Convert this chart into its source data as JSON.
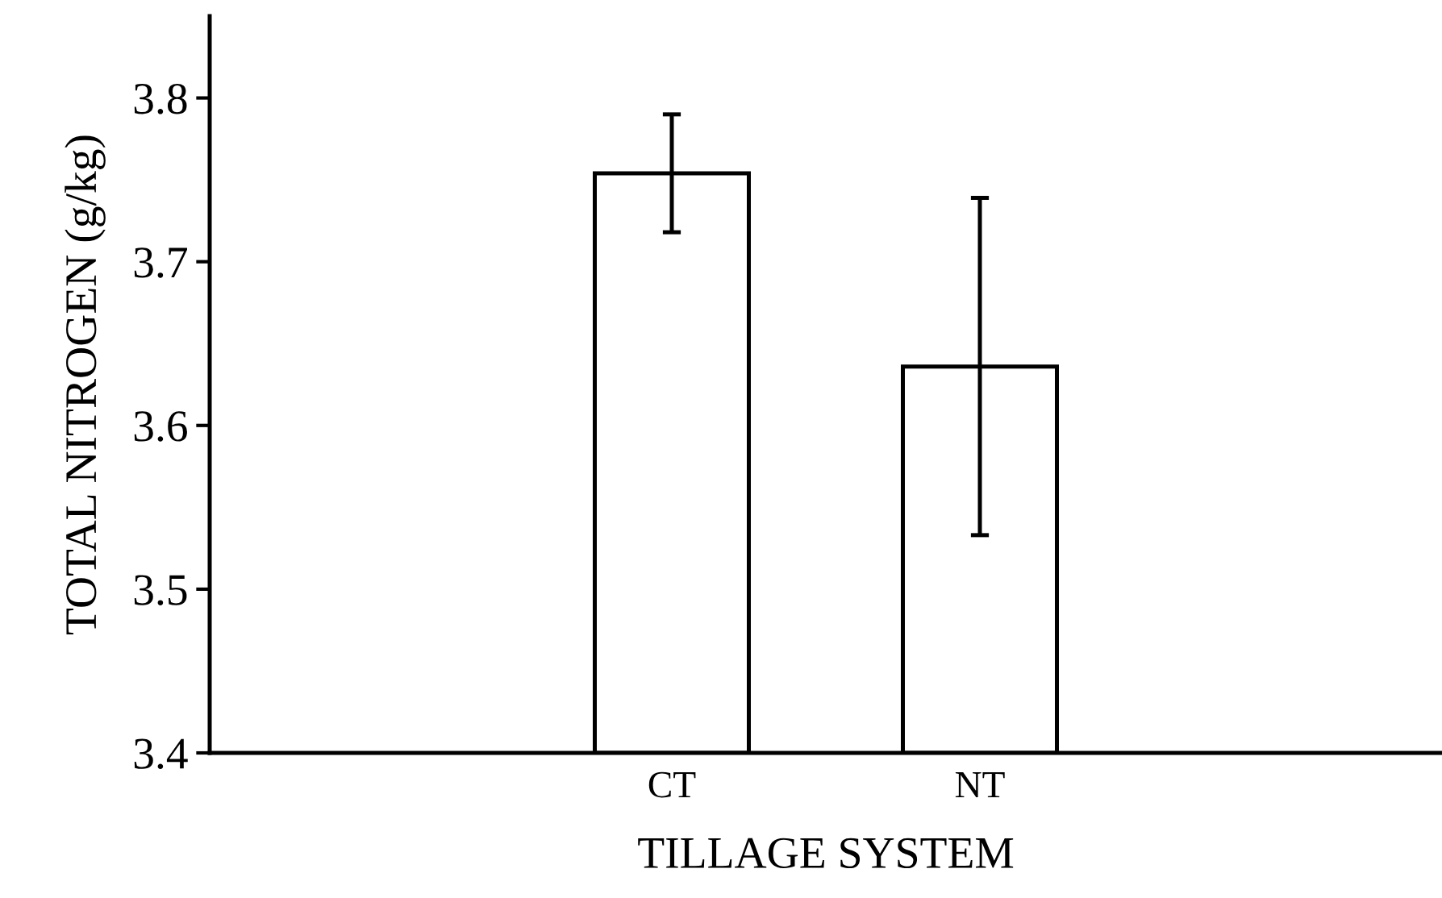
{
  "chart_data": {
    "type": "bar",
    "xlabel": "TILLAGE SYSTEM",
    "ylabel": "TOTAL NITROGEN (g/kg)",
    "categories": [
      null,
      "CT",
      "NT",
      null
    ],
    "values": [
      null,
      3.754,
      3.636,
      null
    ],
    "errors": [
      null,
      0.036,
      0.103,
      null
    ],
    "color": "#ffffff",
    "ylim": [
      3.4,
      3.85
    ],
    "yticks": [
      3.4,
      3.5,
      3.6,
      3.7,
      3.8
    ],
    "grid": false,
    "legend": false
  }
}
